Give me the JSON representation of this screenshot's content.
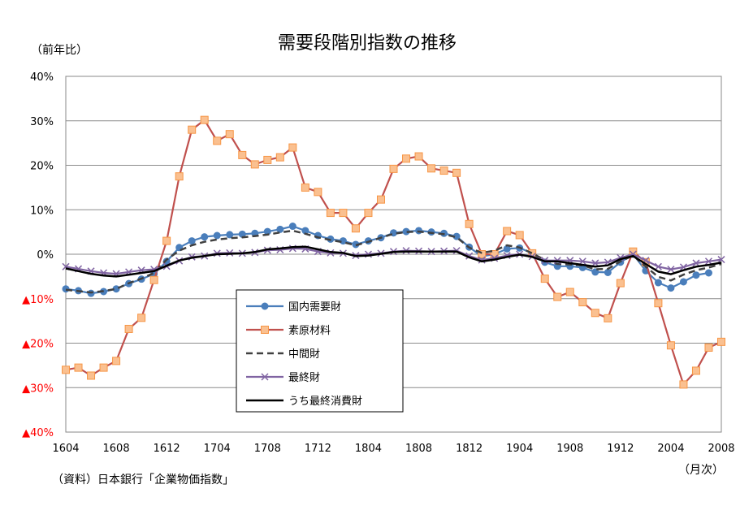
{
  "chart_data": {
    "type": "line",
    "title": "需要段階別指数の推移",
    "ylabel": "（前年比）",
    "xunit": "（月次）",
    "source": "（資料）日本銀行「企業物価指数」",
    "ylim": [
      -40,
      40
    ],
    "ytick_values": [
      40,
      30,
      20,
      10,
      0,
      -10,
      -20,
      -30,
      -40
    ],
    "ytick_labels": [
      "40%",
      "30%",
      "20%",
      "10%",
      "0%",
      "▲10%",
      "▲20%",
      "▲30%",
      "▲40%"
    ],
    "negative_color": "#ff0000",
    "xtick_labels": [
      "1604",
      "1608",
      "1612",
      "1704",
      "1708",
      "1712",
      "1804",
      "1808",
      "1812",
      "1904",
      "1908",
      "1912",
      "2004",
      "2008"
    ],
    "grid": true,
    "legend_position": "inside-lower-left",
    "x": [
      "1604",
      "1605",
      "1606",
      "1607",
      "1608",
      "1609",
      "1610",
      "1611",
      "1612",
      "1701",
      "1702",
      "1703",
      "1704",
      "1705",
      "1706",
      "1707",
      "1708",
      "1709",
      "1710",
      "1711",
      "1712",
      "1801",
      "1802",
      "1803",
      "1804",
      "1805",
      "1806",
      "1807",
      "1808",
      "1809",
      "1810",
      "1811",
      "1812",
      "1901",
      "1902",
      "1903",
      "1904",
      "1905",
      "1906",
      "1907",
      "1908",
      "1909",
      "1910",
      "1911",
      "1912",
      "2001",
      "2002",
      "2003",
      "2004",
      "2005",
      "2006",
      "2007",
      "2008"
    ],
    "series": [
      {
        "name": "国内需要財",
        "color": "#4a7ebb",
        "marker": "circle",
        "dash": "",
        "values": [
          -7.8,
          -8.2,
          -8.8,
          -8.4,
          -7.8,
          -6.6,
          -5.6,
          -4.4,
          -1.6,
          1.5,
          3.0,
          3.9,
          4.2,
          4.4,
          4.5,
          4.7,
          5.1,
          5.6,
          6.3,
          5.3,
          4.2,
          3.4,
          3.0,
          2.2,
          3.0,
          3.7,
          4.8,
          5.1,
          5.3,
          5.0,
          4.7,
          4.0,
          1.6,
          -0.5,
          0.0,
          1.2,
          1.4,
          0.2,
          -1.8,
          -2.7,
          -2.7,
          -3.0,
          -4.0,
          -4.1,
          -1.8,
          0.0,
          -3.7,
          -6.4,
          -7.6,
          -6.2,
          -4.7,
          -4.2,
          null
        ]
      },
      {
        "name": "素原材料",
        "color": "#c0504d",
        "marker": "square",
        "dash": "",
        "values": [
          -26.0,
          -25.5,
          -27.3,
          -25.5,
          -24.0,
          -16.8,
          -14.3,
          -5.8,
          3.0,
          17.5,
          28.0,
          30.2,
          25.5,
          27.0,
          22.3,
          20.2,
          21.2,
          21.8,
          24.0,
          15.0,
          14.0,
          9.3,
          9.3,
          5.8,
          9.3,
          12.3,
          19.2,
          21.5,
          22.0,
          19.3,
          18.8,
          18.3,
          6.8,
          0.0,
          0.0,
          5.2,
          4.3,
          0.2,
          -5.5,
          -9.6,
          -8.5,
          -10.8,
          -13.2,
          -14.4,
          -6.5,
          0.6,
          -1.8,
          -11.0,
          -20.5,
          -29.3,
          -26.2,
          -21.0,
          -19.7
        ]
      },
      {
        "name": "中間財",
        "color": "#404040",
        "marker": "none",
        "dash": "8,5",
        "values": [
          -8.0,
          -8.3,
          -8.6,
          -8.3,
          -7.8,
          -6.5,
          -5.5,
          -4.2,
          -1.2,
          0.8,
          2.0,
          2.8,
          3.3,
          3.6,
          3.8,
          4.1,
          4.4,
          4.9,
          5.3,
          4.6,
          3.8,
          3.2,
          2.7,
          2.0,
          2.8,
          3.7,
          4.6,
          5.0,
          5.1,
          4.8,
          4.5,
          3.8,
          1.5,
          0.3,
          0.8,
          2.0,
          1.5,
          0.2,
          -1.3,
          -2.2,
          -2.3,
          -2.5,
          -3.4,
          -3.3,
          -1.6,
          -0.3,
          -2.8,
          -5.1,
          -5.9,
          -4.6,
          -3.6,
          -3.0,
          -2.2
        ]
      },
      {
        "name": "最終財",
        "color": "#8064a2",
        "marker": "x",
        "dash": "",
        "values": [
          -2.8,
          -3.3,
          -3.8,
          -4.2,
          -4.4,
          -4.0,
          -3.6,
          -3.4,
          -2.7,
          -1.5,
          -0.6,
          -0.4,
          0.2,
          0.3,
          0.2,
          0.4,
          0.9,
          1.0,
          1.3,
          1.2,
          0.6,
          0.3,
          0.2,
          -0.3,
          0.0,
          0.2,
          0.6,
          0.8,
          0.7,
          0.6,
          0.7,
          0.8,
          -0.4,
          -1.3,
          -0.9,
          -0.3,
          0.0,
          -0.5,
          -1.4,
          -1.4,
          -1.4,
          -1.6,
          -2.0,
          -1.8,
          -0.8,
          0.0,
          -1.4,
          -2.8,
          -3.4,
          -2.9,
          -2.0,
          -1.6,
          -1.2
        ]
      },
      {
        "name": "うち最終消費財",
        "color": "#000000",
        "marker": "none",
        "dash": "",
        "values": [
          -3.2,
          -3.8,
          -4.4,
          -4.8,
          -5.0,
          -4.6,
          -4.2,
          -3.8,
          -2.6,
          -1.4,
          -0.8,
          -0.4,
          0.0,
          0.1,
          0.2,
          0.5,
          1.1,
          1.3,
          1.6,
          1.7,
          1.1,
          0.5,
          0.3,
          -0.4,
          -0.3,
          0.1,
          0.5,
          0.6,
          0.6,
          0.6,
          0.6,
          0.6,
          -0.7,
          -1.6,
          -1.2,
          -0.6,
          -0.1,
          -0.6,
          -1.6,
          -1.6,
          -2.0,
          -2.4,
          -2.8,
          -2.5,
          -1.1,
          -0.4,
          -2.2,
          -3.9,
          -4.5,
          -3.6,
          -2.8,
          -2.4,
          -1.9
        ]
      }
    ]
  }
}
